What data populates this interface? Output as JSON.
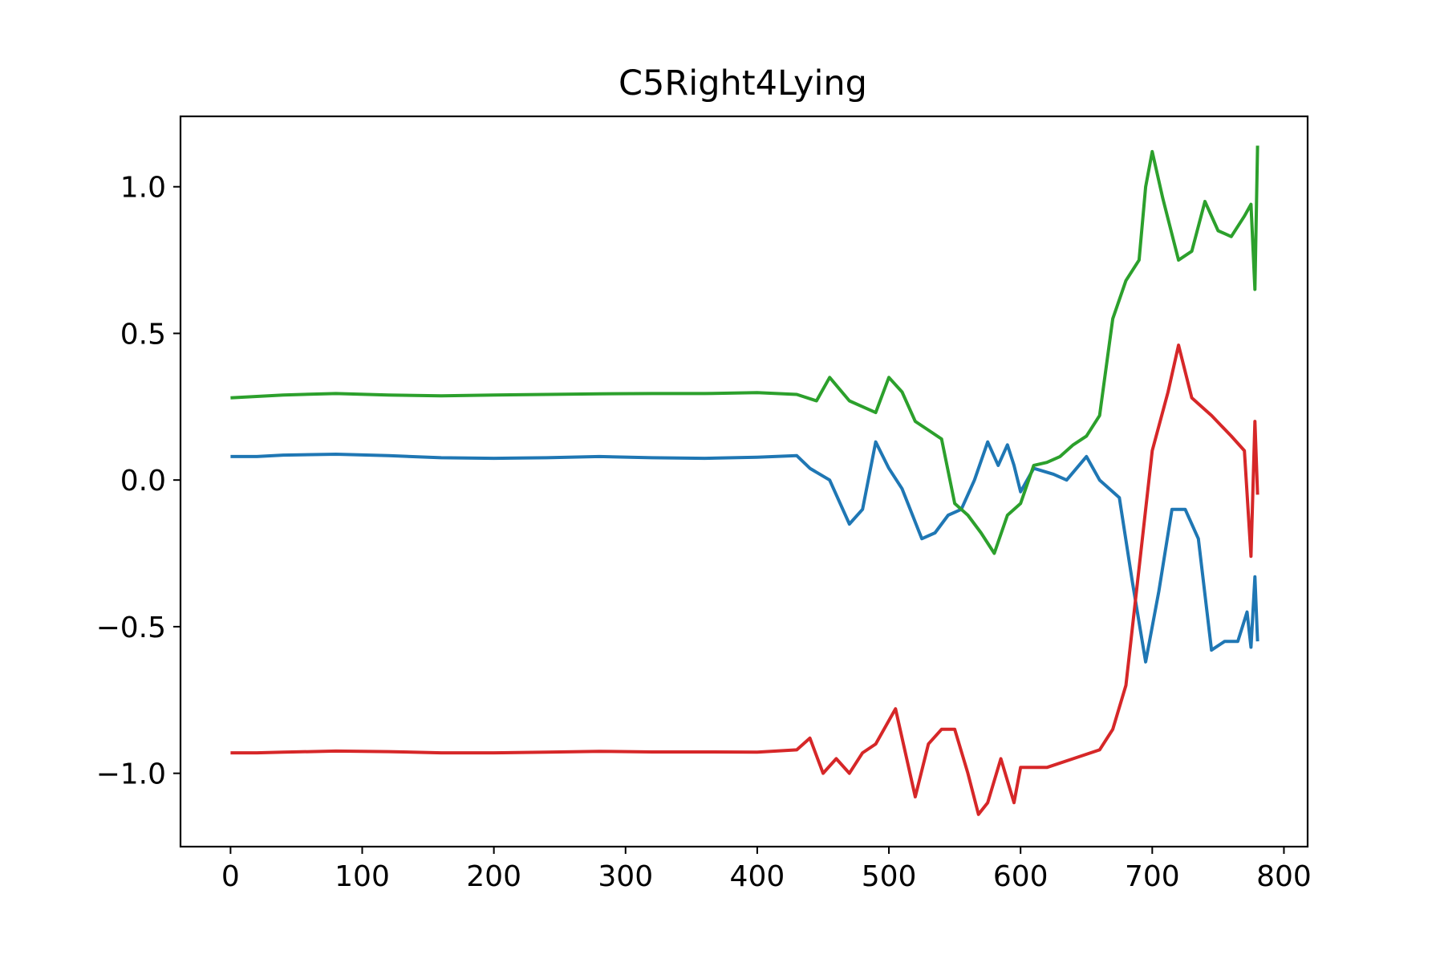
{
  "chart_data": {
    "type": "line",
    "title": "C5Right4Lying",
    "xlabel": "",
    "ylabel": "",
    "xlim": [
      -38,
      818
    ],
    "ylim": [
      -1.25,
      1.24
    ],
    "xticks": [
      0,
      100,
      200,
      300,
      400,
      500,
      600,
      700,
      800
    ],
    "yticks": [
      1.0,
      0.5,
      0.0,
      -0.5,
      -1.0
    ],
    "xtick_labels": [
      "0",
      "100",
      "200",
      "300",
      "400",
      "500",
      "600",
      "700",
      "800"
    ],
    "ytick_labels": [
      "1.0",
      "0.5",
      "0.0",
      "−0.5",
      "−1.0"
    ],
    "grid": false,
    "legend": "none",
    "series": [
      {
        "color": "#1f77b4",
        "points": [
          [
            0,
            0.08
          ],
          [
            20,
            0.08
          ],
          [
            40,
            0.085
          ],
          [
            80,
            0.088
          ],
          [
            120,
            0.083
          ],
          [
            160,
            0.076
          ],
          [
            200,
            0.074
          ],
          [
            240,
            0.076
          ],
          [
            280,
            0.08
          ],
          [
            320,
            0.076
          ],
          [
            360,
            0.074
          ],
          [
            400,
            0.078
          ],
          [
            430,
            0.083
          ],
          [
            440,
            0.04
          ],
          [
            455,
            0.0
          ],
          [
            470,
            -0.15
          ],
          [
            480,
            -0.1
          ],
          [
            490,
            0.13
          ],
          [
            500,
            0.04
          ],
          [
            510,
            -0.03
          ],
          [
            525,
            -0.2
          ],
          [
            535,
            -0.18
          ],
          [
            545,
            -0.12
          ],
          [
            555,
            -0.1
          ],
          [
            565,
            0.0
          ],
          [
            575,
            0.13
          ],
          [
            583,
            0.05
          ],
          [
            590,
            0.12
          ],
          [
            595,
            0.05
          ],
          [
            600,
            -0.04
          ],
          [
            610,
            0.04
          ],
          [
            625,
            0.02
          ],
          [
            635,
            0.0
          ],
          [
            650,
            0.08
          ],
          [
            660,
            0.0
          ],
          [
            675,
            -0.06
          ],
          [
            685,
            -0.35
          ],
          [
            695,
            -0.62
          ],
          [
            705,
            -0.38
          ],
          [
            715,
            -0.1
          ],
          [
            725,
            -0.1
          ],
          [
            735,
            -0.2
          ],
          [
            745,
            -0.58
          ],
          [
            755,
            -0.55
          ],
          [
            765,
            -0.55
          ],
          [
            772,
            -0.45
          ],
          [
            775,
            -0.57
          ],
          [
            778,
            -0.33
          ],
          [
            780,
            -0.55
          ]
        ]
      },
      {
        "color": "#2ca02c",
        "points": [
          [
            0,
            0.28
          ],
          [
            20,
            0.285
          ],
          [
            40,
            0.29
          ],
          [
            80,
            0.295
          ],
          [
            120,
            0.29
          ],
          [
            160,
            0.287
          ],
          [
            200,
            0.29
          ],
          [
            240,
            0.292
          ],
          [
            280,
            0.294
          ],
          [
            320,
            0.295
          ],
          [
            360,
            0.295
          ],
          [
            400,
            0.298
          ],
          [
            430,
            0.292
          ],
          [
            445,
            0.27
          ],
          [
            455,
            0.35
          ],
          [
            470,
            0.27
          ],
          [
            480,
            0.25
          ],
          [
            490,
            0.23
          ],
          [
            500,
            0.35
          ],
          [
            510,
            0.3
          ],
          [
            520,
            0.2
          ],
          [
            530,
            0.17
          ],
          [
            540,
            0.14
          ],
          [
            550,
            -0.08
          ],
          [
            560,
            -0.12
          ],
          [
            570,
            -0.18
          ],
          [
            580,
            -0.25
          ],
          [
            590,
            -0.12
          ],
          [
            600,
            -0.08
          ],
          [
            610,
            0.05
          ],
          [
            620,
            0.06
          ],
          [
            630,
            0.08
          ],
          [
            640,
            0.12
          ],
          [
            650,
            0.15
          ],
          [
            660,
            0.22
          ],
          [
            670,
            0.55
          ],
          [
            680,
            0.68
          ],
          [
            690,
            0.75
          ],
          [
            695,
            1.0
          ],
          [
            700,
            1.12
          ],
          [
            708,
            0.96
          ],
          [
            720,
            0.75
          ],
          [
            730,
            0.78
          ],
          [
            740,
            0.95
          ],
          [
            750,
            0.85
          ],
          [
            760,
            0.83
          ],
          [
            770,
            0.9
          ],
          [
            775,
            0.94
          ],
          [
            778,
            0.65
          ],
          [
            780,
            1.14
          ]
        ]
      },
      {
        "color": "#d62728",
        "points": [
          [
            0,
            -0.93
          ],
          [
            20,
            -0.93
          ],
          [
            40,
            -0.928
          ],
          [
            80,
            -0.924
          ],
          [
            120,
            -0.926
          ],
          [
            160,
            -0.93
          ],
          [
            200,
            -0.93
          ],
          [
            240,
            -0.928
          ],
          [
            280,
            -0.925
          ],
          [
            320,
            -0.927
          ],
          [
            360,
            -0.927
          ],
          [
            400,
            -0.928
          ],
          [
            430,
            -0.92
          ],
          [
            440,
            -0.88
          ],
          [
            450,
            -1.0
          ],
          [
            460,
            -0.95
          ],
          [
            470,
            -1.0
          ],
          [
            480,
            -0.93
          ],
          [
            490,
            -0.9
          ],
          [
            505,
            -0.78
          ],
          [
            520,
            -1.08
          ],
          [
            530,
            -0.9
          ],
          [
            540,
            -0.85
          ],
          [
            550,
            -0.85
          ],
          [
            560,
            -1.0
          ],
          [
            568,
            -1.14
          ],
          [
            575,
            -1.1
          ],
          [
            585,
            -0.95
          ],
          [
            595,
            -1.1
          ],
          [
            600,
            -0.98
          ],
          [
            620,
            -0.98
          ],
          [
            640,
            -0.95
          ],
          [
            660,
            -0.92
          ],
          [
            670,
            -0.85
          ],
          [
            680,
            -0.7
          ],
          [
            690,
            -0.3
          ],
          [
            700,
            0.1
          ],
          [
            712,
            0.3
          ],
          [
            720,
            0.46
          ],
          [
            730,
            0.28
          ],
          [
            745,
            0.22
          ],
          [
            760,
            0.15
          ],
          [
            770,
            0.1
          ],
          [
            775,
            -0.26
          ],
          [
            778,
            0.2
          ],
          [
            780,
            -0.05
          ]
        ]
      }
    ]
  }
}
